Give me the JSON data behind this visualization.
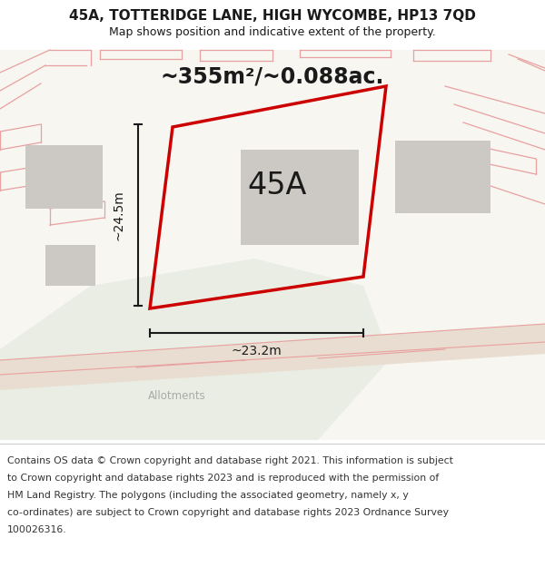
{
  "title": "45A, TOTTERIDGE LANE, HIGH WYCOMBE, HP13 7QD",
  "subtitle": "Map shows position and indicative extent of the property.",
  "area_label": "~355m²/~0.088ac.",
  "plot_label": "45A",
  "width_label": "~23.2m",
  "height_label": "~24.5m",
  "allotments_label": "Allotments",
  "footer_line1": "Contains OS data © Crown copyright and database right 2021. This information is subject",
  "footer_line2": "to Crown copyright and database rights 2023 and is reproduced with the permission of",
  "footer_line3": "HM Land Registry. The polygons (including the associated geometry, namely x, y",
  "footer_line4": "co-ordinates) are subject to Crown copyright and database rights 2023 Ordnance Survey",
  "footer_line5": "100026316.",
  "bg_color": "#f7f6f1",
  "white": "#ffffff",
  "cadastral_color": "#e8a0a0",
  "building_color": "#ccc9c4",
  "plot_color": "#cc0000",
  "dim_color": "#1a1a1a",
  "text_color": "#1a1a1a",
  "allotments_color": "#aaaaaa",
  "road_fill": "#e8ddd0",
  "green_fill": "#e9ede3"
}
